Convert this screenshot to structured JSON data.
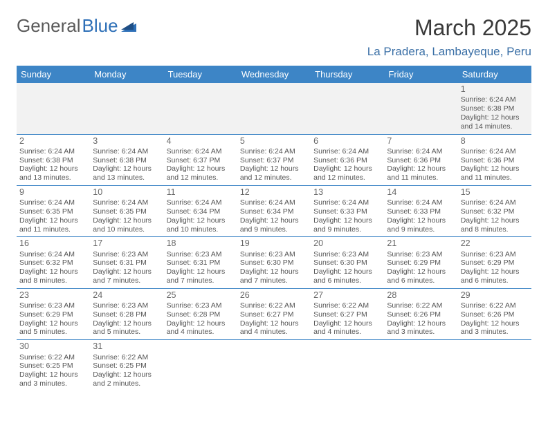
{
  "logo": {
    "part1": "General",
    "part2": "Blue"
  },
  "title": "March 2025",
  "location": "La Pradera, Lambayeque, Peru",
  "colors": {
    "header_bg": "#3d85c6",
    "header_text": "#ffffff",
    "row_border": "#3d85c6",
    "week1_bg": "#f2f2f2",
    "location_color": "#3a6fa6",
    "logo_blue": "#2d6fb7",
    "text": "#555555"
  },
  "weekdays": [
    "Sunday",
    "Monday",
    "Tuesday",
    "Wednesday",
    "Thursday",
    "Friday",
    "Saturday"
  ],
  "weeks": [
    [
      null,
      null,
      null,
      null,
      null,
      null,
      {
        "d": "1",
        "sr": "Sunrise: 6:24 AM",
        "ss": "Sunset: 6:38 PM",
        "dl": "Daylight: 12 hours and 14 minutes."
      }
    ],
    [
      {
        "d": "2",
        "sr": "Sunrise: 6:24 AM",
        "ss": "Sunset: 6:38 PM",
        "dl": "Daylight: 12 hours and 13 minutes."
      },
      {
        "d": "3",
        "sr": "Sunrise: 6:24 AM",
        "ss": "Sunset: 6:38 PM",
        "dl": "Daylight: 12 hours and 13 minutes."
      },
      {
        "d": "4",
        "sr": "Sunrise: 6:24 AM",
        "ss": "Sunset: 6:37 PM",
        "dl": "Daylight: 12 hours and 12 minutes."
      },
      {
        "d": "5",
        "sr": "Sunrise: 6:24 AM",
        "ss": "Sunset: 6:37 PM",
        "dl": "Daylight: 12 hours and 12 minutes."
      },
      {
        "d": "6",
        "sr": "Sunrise: 6:24 AM",
        "ss": "Sunset: 6:36 PM",
        "dl": "Daylight: 12 hours and 12 minutes."
      },
      {
        "d": "7",
        "sr": "Sunrise: 6:24 AM",
        "ss": "Sunset: 6:36 PM",
        "dl": "Daylight: 12 hours and 11 minutes."
      },
      {
        "d": "8",
        "sr": "Sunrise: 6:24 AM",
        "ss": "Sunset: 6:36 PM",
        "dl": "Daylight: 12 hours and 11 minutes."
      }
    ],
    [
      {
        "d": "9",
        "sr": "Sunrise: 6:24 AM",
        "ss": "Sunset: 6:35 PM",
        "dl": "Daylight: 12 hours and 11 minutes."
      },
      {
        "d": "10",
        "sr": "Sunrise: 6:24 AM",
        "ss": "Sunset: 6:35 PM",
        "dl": "Daylight: 12 hours and 10 minutes."
      },
      {
        "d": "11",
        "sr": "Sunrise: 6:24 AM",
        "ss": "Sunset: 6:34 PM",
        "dl": "Daylight: 12 hours and 10 minutes."
      },
      {
        "d": "12",
        "sr": "Sunrise: 6:24 AM",
        "ss": "Sunset: 6:34 PM",
        "dl": "Daylight: 12 hours and 9 minutes."
      },
      {
        "d": "13",
        "sr": "Sunrise: 6:24 AM",
        "ss": "Sunset: 6:33 PM",
        "dl": "Daylight: 12 hours and 9 minutes."
      },
      {
        "d": "14",
        "sr": "Sunrise: 6:24 AM",
        "ss": "Sunset: 6:33 PM",
        "dl": "Daylight: 12 hours and 9 minutes."
      },
      {
        "d": "15",
        "sr": "Sunrise: 6:24 AM",
        "ss": "Sunset: 6:32 PM",
        "dl": "Daylight: 12 hours and 8 minutes."
      }
    ],
    [
      {
        "d": "16",
        "sr": "Sunrise: 6:24 AM",
        "ss": "Sunset: 6:32 PM",
        "dl": "Daylight: 12 hours and 8 minutes."
      },
      {
        "d": "17",
        "sr": "Sunrise: 6:23 AM",
        "ss": "Sunset: 6:31 PM",
        "dl": "Daylight: 12 hours and 7 minutes."
      },
      {
        "d": "18",
        "sr": "Sunrise: 6:23 AM",
        "ss": "Sunset: 6:31 PM",
        "dl": "Daylight: 12 hours and 7 minutes."
      },
      {
        "d": "19",
        "sr": "Sunrise: 6:23 AM",
        "ss": "Sunset: 6:30 PM",
        "dl": "Daylight: 12 hours and 7 minutes."
      },
      {
        "d": "20",
        "sr": "Sunrise: 6:23 AM",
        "ss": "Sunset: 6:30 PM",
        "dl": "Daylight: 12 hours and 6 minutes."
      },
      {
        "d": "21",
        "sr": "Sunrise: 6:23 AM",
        "ss": "Sunset: 6:29 PM",
        "dl": "Daylight: 12 hours and 6 minutes."
      },
      {
        "d": "22",
        "sr": "Sunrise: 6:23 AM",
        "ss": "Sunset: 6:29 PM",
        "dl": "Daylight: 12 hours and 6 minutes."
      }
    ],
    [
      {
        "d": "23",
        "sr": "Sunrise: 6:23 AM",
        "ss": "Sunset: 6:29 PM",
        "dl": "Daylight: 12 hours and 5 minutes."
      },
      {
        "d": "24",
        "sr": "Sunrise: 6:23 AM",
        "ss": "Sunset: 6:28 PM",
        "dl": "Daylight: 12 hours and 5 minutes."
      },
      {
        "d": "25",
        "sr": "Sunrise: 6:23 AM",
        "ss": "Sunset: 6:28 PM",
        "dl": "Daylight: 12 hours and 4 minutes."
      },
      {
        "d": "26",
        "sr": "Sunrise: 6:22 AM",
        "ss": "Sunset: 6:27 PM",
        "dl": "Daylight: 12 hours and 4 minutes."
      },
      {
        "d": "27",
        "sr": "Sunrise: 6:22 AM",
        "ss": "Sunset: 6:27 PM",
        "dl": "Daylight: 12 hours and 4 minutes."
      },
      {
        "d": "28",
        "sr": "Sunrise: 6:22 AM",
        "ss": "Sunset: 6:26 PM",
        "dl": "Daylight: 12 hours and 3 minutes."
      },
      {
        "d": "29",
        "sr": "Sunrise: 6:22 AM",
        "ss": "Sunset: 6:26 PM",
        "dl": "Daylight: 12 hours and 3 minutes."
      }
    ],
    [
      {
        "d": "30",
        "sr": "Sunrise: 6:22 AM",
        "ss": "Sunset: 6:25 PM",
        "dl": "Daylight: 12 hours and 3 minutes."
      },
      {
        "d": "31",
        "sr": "Sunrise: 6:22 AM",
        "ss": "Sunset: 6:25 PM",
        "dl": "Daylight: 12 hours and 2 minutes."
      },
      null,
      null,
      null,
      null,
      null
    ]
  ]
}
